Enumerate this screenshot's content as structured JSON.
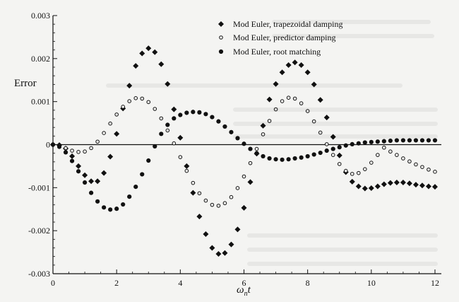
{
  "chart_data": {
    "type": "scatter",
    "ylabel": "Error",
    "xlabel_main": "ω",
    "xlabel_sub": "n",
    "xlabel_tail": "t",
    "xlim": [
      0,
      12.2
    ],
    "ylim": [
      -0.003,
      0.003
    ],
    "xticks": [
      0,
      2,
      4,
      6,
      8,
      10,
      12
    ],
    "yticks": [
      -0.003,
      -0.002,
      -0.001,
      0,
      0.001,
      0.002,
      0.003
    ],
    "ytick_labels": [
      "-0.003",
      "-0.002",
      "-0.001",
      "0",
      "0.001",
      "0.002",
      "0.003"
    ],
    "legend_position": "top-right",
    "series": [
      {
        "name": "Mod Euler, trapezoidal damping",
        "marker": "diamond",
        "color": "#111111",
        "x": [
          0,
          0.2,
          0.4,
          0.6,
          0.8,
          1.0,
          1.2,
          1.4,
          1.6,
          1.8,
          2.0,
          2.2,
          2.4,
          2.6,
          2.8,
          3.0,
          3.2,
          3.4,
          3.6,
          3.8,
          4.0,
          4.2,
          4.4,
          4.6,
          4.8,
          5.0,
          5.2,
          5.4,
          5.6,
          5.8,
          6.0,
          6.2,
          6.4,
          6.6,
          6.8,
          7.0,
          7.2,
          7.4,
          7.6,
          7.8,
          8.0,
          8.2,
          8.4,
          8.6,
          8.8,
          9.0,
          9.2,
          9.4,
          9.6,
          9.8,
          10.0,
          10.2,
          10.4,
          10.6,
          10.8,
          11.0,
          11.2,
          11.4,
          11.6,
          11.8,
          12.0
        ],
        "values": [
          0,
          -1e-05,
          -9e-05,
          -0.00027,
          -0.0005,
          -0.00071,
          -0.00085,
          -0.00085,
          -0.00066,
          -0.00028,
          0.00025,
          0.00084,
          0.00137,
          0.00183,
          0.00212,
          0.00224,
          0.00215,
          0.00187,
          0.00141,
          0.00082,
          0.00016,
          -0.0005,
          -0.00112,
          -0.00167,
          -0.00208,
          -0.0024,
          -0.00254,
          -0.00252,
          -0.00232,
          -0.00197,
          -0.00147,
          -0.00087,
          -0.00021,
          0.00044,
          0.00105,
          0.00141,
          0.00168,
          0.00185,
          0.00191,
          0.00185,
          0.00168,
          0.0014,
          0.00104,
          0.00063,
          0.00018,
          -0.00025,
          -0.00064,
          -0.00086,
          -0.00097,
          -0.00102,
          -0.00101,
          -0.00097,
          -0.00092,
          -0.00089,
          -0.00088,
          -0.00088,
          -0.0009,
          -0.00093,
          -0.00095,
          -0.00097,
          -0.00098
        ]
      },
      {
        "name": "Mod Euler, predictor damping",
        "marker": "open-circle",
        "color": "#111111",
        "x": [
          0,
          0.2,
          0.4,
          0.6,
          0.8,
          1.0,
          1.2,
          1.4,
          1.6,
          1.8,
          2.0,
          2.2,
          2.4,
          2.6,
          2.8,
          3.0,
          3.2,
          3.4,
          3.6,
          3.8,
          4.0,
          4.2,
          4.4,
          4.6,
          4.8,
          5.0,
          5.2,
          5.4,
          5.6,
          5.8,
          6.0,
          6.2,
          6.4,
          6.6,
          6.8,
          7.0,
          7.2,
          7.4,
          7.6,
          7.8,
          8.0,
          8.2,
          8.4,
          8.6,
          8.8,
          9.0,
          9.2,
          9.4,
          9.6,
          9.8,
          10.0,
          10.2,
          10.4,
          10.6,
          10.8,
          11.0,
          11.2,
          11.4,
          11.6,
          11.8,
          12.0
        ],
        "values": [
          0,
          -3e-05,
          -8e-05,
          -0.00014,
          -0.00017,
          -0.00016,
          -8e-05,
          7e-05,
          0.00027,
          0.00049,
          0.0007,
          0.00088,
          0.00101,
          0.00108,
          0.00107,
          0.00099,
          0.00083,
          0.00061,
          0.00033,
          3e-05,
          -0.00029,
          -0.00061,
          -0.00089,
          -0.00113,
          -0.0013,
          -0.0014,
          -0.00142,
          -0.00136,
          -0.00122,
          -0.00101,
          -0.00074,
          -0.00043,
          -0.0001,
          0.00024,
          0.00055,
          0.00082,
          0.00101,
          0.00109,
          0.00107,
          0.00096,
          0.00078,
          0.00054,
          0.00028,
          1e-05,
          -0.00024,
          -0.00045,
          -0.00061,
          -0.00068,
          -0.00066,
          -0.00057,
          -0.00042,
          -0.00024,
          -7e-05,
          -0.00016,
          -0.00024,
          -0.00032,
          -0.00039,
          -0.00046,
          -0.00052,
          -0.00058,
          -0.00063
        ]
      },
      {
        "name": "Mod Euler, root matching",
        "marker": "filled-circle",
        "color": "#111111",
        "x": [
          0,
          0.2,
          0.4,
          0.6,
          0.8,
          1.0,
          1.2,
          1.4,
          1.6,
          1.8,
          2.0,
          2.2,
          2.4,
          2.6,
          2.8,
          3.0,
          3.2,
          3.4,
          3.6,
          3.8,
          4.0,
          4.2,
          4.4,
          4.6,
          4.8,
          5.0,
          5.2,
          5.4,
          5.6,
          5.8,
          6.0,
          6.2,
          6.4,
          6.6,
          6.8,
          7.0,
          7.2,
          7.4,
          7.6,
          7.8,
          8.0,
          8.2,
          8.4,
          8.6,
          8.8,
          9.0,
          9.2,
          9.4,
          9.6,
          9.8,
          10.0,
          10.2,
          10.4,
          10.6,
          10.8,
          11.0,
          11.2,
          11.4,
          11.6,
          11.8,
          12.0
        ],
        "values": [
          0,
          -5e-05,
          -0.00018,
          -0.00038,
          -0.00062,
          -0.00088,
          -0.00112,
          -0.00132,
          -0.00146,
          -0.00151,
          -0.00149,
          -0.00139,
          -0.00121,
          -0.00098,
          -0.00069,
          -0.00037,
          -4e-05,
          0.00025,
          0.00046,
          0.00061,
          0.00069,
          0.00074,
          0.00076,
          0.00075,
          0.00071,
          0.00064,
          0.00054,
          0.00042,
          0.00029,
          0.00015,
          2e-05,
          -0.0001,
          -0.0002,
          -0.00027,
          -0.00032,
          -0.00034,
          -0.00035,
          -0.00034,
          -0.00032,
          -0.0003,
          -0.00027,
          -0.00023,
          -0.00019,
          -0.00014,
          -0.0001,
          -6e-05,
          -2e-05,
          1e-05,
          3e-05,
          5e-05,
          6e-05,
          7e-05,
          8e-05,
          9e-05,
          0.0001,
          0.0001,
          0.0001,
          0.0001,
          0.0001,
          0.0001,
          0.0001
        ]
      }
    ]
  }
}
